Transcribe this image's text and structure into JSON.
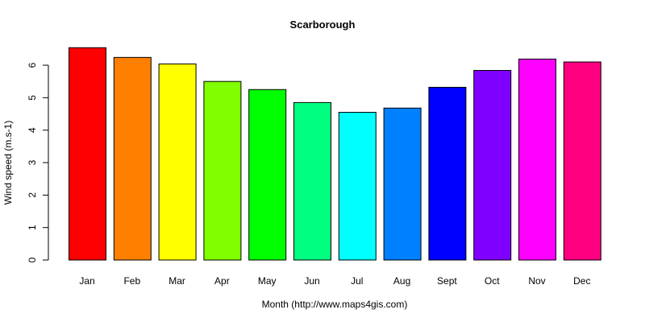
{
  "chart_data": {
    "type": "bar",
    "title": "Scarborough",
    "xlabel": "Month (http://www.maps4gis.com)",
    "ylabel": "Wind speed (m.s-1)",
    "categories": [
      "Jan",
      "Feb",
      "Mar",
      "Apr",
      "May",
      "Jun",
      "Jul",
      "Aug",
      "Sept",
      "Oct",
      "Nov",
      "Dec"
    ],
    "values": [
      6.54,
      6.24,
      6.04,
      5.5,
      5.25,
      4.85,
      4.55,
      4.68,
      5.32,
      5.84,
      6.19,
      6.1
    ],
    "colors": [
      "#FF0000",
      "#FF8000",
      "#FFFF00",
      "#80FF00",
      "#00FF00",
      "#00FF80",
      "#00FFFF",
      "#0080FF",
      "#0000FF",
      "#8000FF",
      "#FF00FF",
      "#FF0080"
    ],
    "yticks": [
      0,
      1,
      2,
      3,
      4,
      5,
      6
    ],
    "ylim": [
      0,
      6.6
    ],
    "grid": false,
    "legend": null
  }
}
